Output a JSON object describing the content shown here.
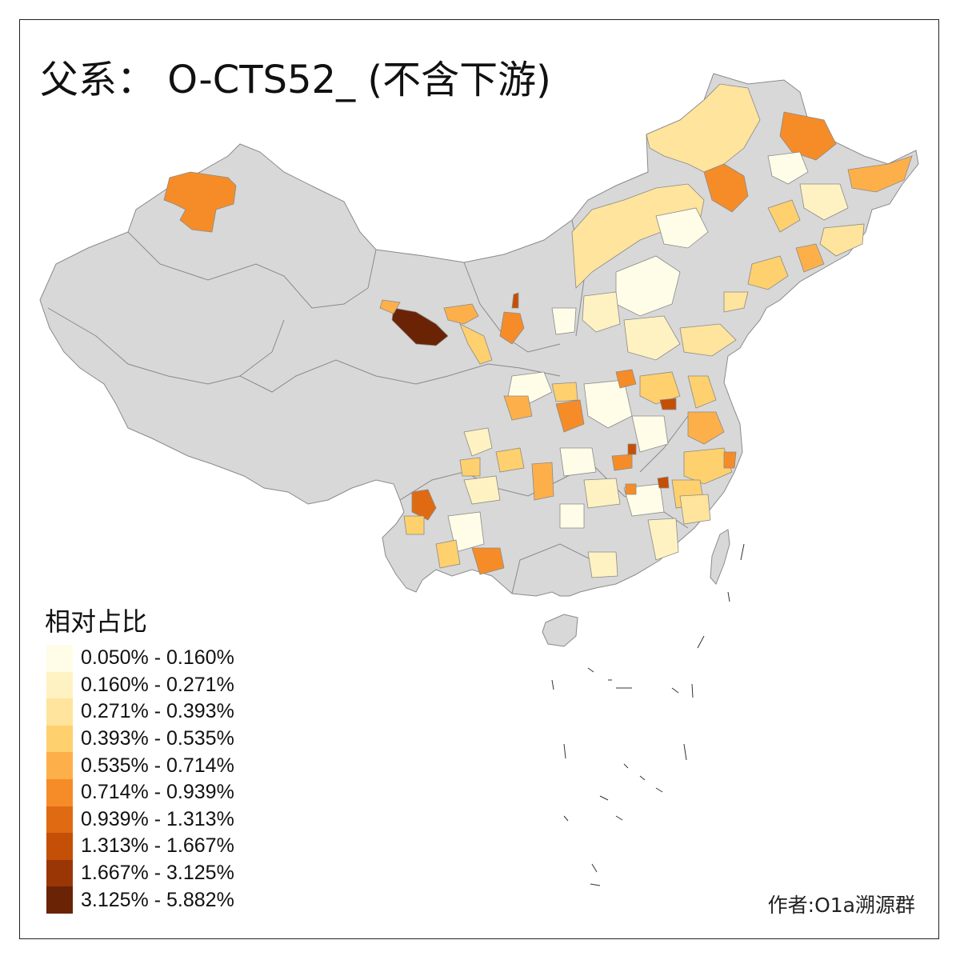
{
  "title": "父系： O-CTS52_ (不含下游)",
  "legend": {
    "title": "相对占比",
    "items": [
      {
        "label": "0.050% - 0.160%",
        "color": "#fffde8"
      },
      {
        "label": "0.160% - 0.271%",
        "color": "#fff2c2"
      },
      {
        "label": "0.271% - 0.393%",
        "color": "#fee49c"
      },
      {
        "label": "0.393% - 0.535%",
        "color": "#fed06e"
      },
      {
        "label": "0.535% - 0.714%",
        "color": "#fdb04a"
      },
      {
        "label": "0.714% - 0.939%",
        "color": "#f68c28"
      },
      {
        "label": "0.939% - 1.313%",
        "color": "#e06a12"
      },
      {
        "label": "1.313% - 1.667%",
        "color": "#c44f06"
      },
      {
        "label": "1.667% - 3.125%",
        "color": "#9a3606"
      },
      {
        "label": "3.125% - 5.882%",
        "color": "#6b2306"
      }
    ]
  },
  "colors": {
    "no_data": "#d8d8d8",
    "border": "#8a8a8a"
  },
  "credit": "作者:O1a溯源群"
}
